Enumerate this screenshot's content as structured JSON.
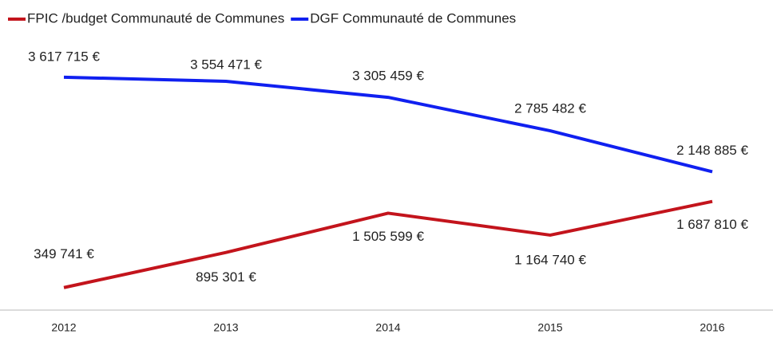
{
  "chart_data": {
    "type": "line",
    "categories": [
      "2012",
      "2013",
      "2014",
      "2015",
      "2016"
    ],
    "series": [
      {
        "name": "FPIC /budget Communauté de Communes",
        "color": "#c3141c",
        "values": [
          349741,
          895301,
          1505599,
          1164740,
          1687810
        ],
        "value_labels": [
          "349 741 €",
          "895 301 €",
          "1 505 599 €",
          "1 164 740 €",
          "1 687 810 €"
        ]
      },
      {
        "name": "DGF Communauté de Communes",
        "color": "#1020f0",
        "values": [
          3617715,
          3554471,
          3305459,
          2785482,
          2148885
        ],
        "value_labels": [
          "3 617 715 €",
          "3 554 471 €",
          "3 305 459 €",
          "2 785 482 €",
          "2 148 885 €"
        ]
      }
    ],
    "ylim": [
      0,
      4000000
    ],
    "legend": "top"
  }
}
